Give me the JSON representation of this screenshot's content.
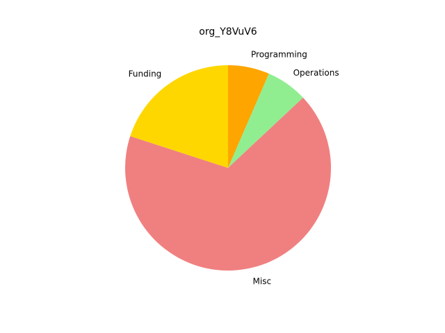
{
  "chart_data": {
    "type": "pie",
    "title": "org_Y8VuV6",
    "slices": [
      {
        "label": "Programming",
        "value": 6.5,
        "color": "#FFA500"
      },
      {
        "label": "Operations",
        "value": 6.5,
        "color": "#90EE90"
      },
      {
        "label": "Misc",
        "value": 67.0,
        "color": "#F08080"
      },
      {
        "label": "Funding",
        "value": 20.0,
        "color": "#FFD700"
      }
    ],
    "start_angle": 90,
    "direction": "clockwise",
    "legend": "none"
  }
}
